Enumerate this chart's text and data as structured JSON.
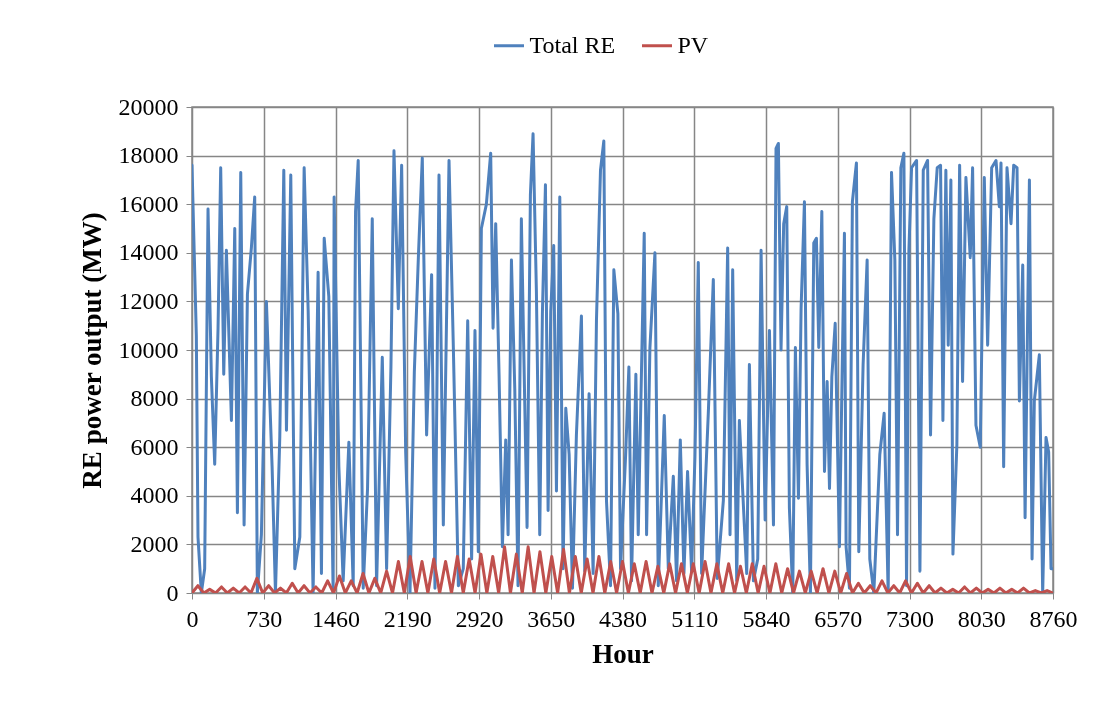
{
  "chart_data": {
    "type": "line",
    "xlabel": "Hour",
    "ylabel": "RE power output (MW)",
    "xlim": [
      0,
      8760
    ],
    "xticks": [
      0,
      730,
      1460,
      2190,
      2920,
      3650,
      4380,
      5110,
      5840,
      6570,
      7300,
      8030,
      8760
    ],
    "ylim": [
      0,
      20000
    ],
    "yticks": [
      0,
      2000,
      4000,
      6000,
      8000,
      10000,
      12000,
      14000,
      16000,
      18000,
      20000
    ],
    "grid": true,
    "legend": "top",
    "series": [
      {
        "name": "Total RE",
        "color": "#4f81bd",
        "x": [
          0,
          44,
          61,
          95,
          129,
          163,
          197,
          231,
          265,
          292,
          323,
          350,
          401,
          435,
          462,
          496,
          530,
          564,
          604,
          638,
          665,
          706,
          757,
          815,
          849,
          893,
          934,
          961,
          1005,
          1046,
          1097,
          1141,
          1182,
          1232,
          1283,
          1317,
          1345,
          1392,
          1436,
          1446,
          1494,
          1538,
          1596,
          1640,
          1664,
          1691,
          1742,
          1786,
          1834,
          1878,
          1936,
          1980,
          2024,
          2055,
          2099,
          2133,
          2174,
          2218,
          2262,
          2303,
          2343,
          2387,
          2438,
          2472,
          2513,
          2557,
          2615,
          2659,
          2710,
          2760,
          2805,
          2845,
          2879,
          2913,
          2944,
          2995,
          3039,
          3063,
          3090,
          3124,
          3158,
          3192,
          3216,
          3250,
          3284,
          3317,
          3351,
          3385,
          3409,
          3443,
          3470,
          3504,
          3538,
          3565,
          3596,
          3623,
          3650,
          3680,
          3708,
          3742,
          3775,
          3803,
          3837,
          3871,
          3911,
          3962,
          3996,
          4040,
          4081,
          4115,
          4156,
          4190,
          4217,
          4258,
          4292,
          4333,
          4360,
          4411,
          4445,
          4472,
          4516,
          4540,
          4601,
          4625,
          4659,
          4710,
          4744,
          4805,
          4846,
          4897,
          4930,
          4968,
          5005,
          5042,
          5083,
          5117,
          5151,
          5185,
          5253,
          5304,
          5344,
          5406,
          5450,
          5474,
          5501,
          5542,
          5569,
          5610,
          5644,
          5671,
          5712,
          5756,
          5790,
          5831,
          5875,
          5916,
          5942,
          5966,
          5993,
          6020,
          6051,
          6078,
          6112,
          6139,
          6170,
          6197,
          6231,
          6258,
          6292,
          6326,
          6353,
          6377,
          6408,
          6435,
          6462,
          6486,
          6510,
          6544,
          6587,
          6614,
          6638,
          6655,
          6689,
          6719,
          6760,
          6784,
          6828,
          6869,
          6896,
          6937,
          6998,
          7042,
          7083,
          7117,
          7151,
          7178,
          7212,
          7243,
          7270,
          7294,
          7321,
          7372,
          7406,
          7440,
          7484,
          7514,
          7548,
          7582,
          7616,
          7640,
          7670,
          7694,
          7721,
          7742,
          7782,
          7810,
          7840,
          7874,
          7918,
          7942,
          7976,
          8020,
          8061,
          8095,
          8136,
          8180,
          8214,
          8231,
          8258,
          8292,
          8333,
          8360,
          8394,
          8418,
          8452,
          8476,
          8520,
          8547,
          8570,
          8621,
          8655,
          8689,
          8716,
          8740,
          8760
        ],
        "values": [
          17600,
          10600,
          2300,
          0,
          1000,
          15800,
          8900,
          5300,
          10900,
          17500,
          9000,
          14100,
          7100,
          15000,
          3300,
          17300,
          2800,
          12300,
          14200,
          16300,
          0,
          2400,
          12000,
          5200,
          0,
          6400,
          17400,
          6700,
          17200,
          1000,
          2300,
          17500,
          11600,
          0,
          13200,
          800,
          14600,
          12200,
          0,
          16300,
          5200,
          500,
          6200,
          300,
          15700,
          17800,
          200,
          4300,
          15400,
          300,
          9700,
          1000,
          9300,
          18200,
          11700,
          17600,
          5800,
          0,
          9100,
          13800,
          17900,
          6500,
          13100,
          200,
          17200,
          2800,
          17800,
          10100,
          300,
          1000,
          11200,
          1400,
          10800,
          1700,
          15000,
          16000,
          18100,
          10900,
          15200,
          9000,
          1900,
          6300,
          2400,
          13700,
          8400,
          300,
          15400,
          7900,
          2700,
          16400,
          18900,
          12400,
          2400,
          11500,
          16800,
          3400,
          11600,
          14300,
          4200,
          16300,
          1000,
          7600,
          5700,
          200,
          6500,
          11400,
          900,
          8200,
          800,
          11200,
          17400,
          18600,
          3800,
          300,
          13300,
          11500,
          1000,
          5600,
          9300,
          500,
          9000,
          2400,
          14800,
          2400,
          10100,
          14000,
          300,
          7300,
          1000,
          4800,
          500,
          6300,
          800,
          5000,
          900,
          5600,
          13600,
          800,
          7400,
          12900,
          600,
          3800,
          14200,
          2400,
          13300,
          500,
          7100,
          3600,
          800,
          9400,
          500,
          1400,
          14100,
          3000,
          10800,
          2800,
          18300,
          18500,
          10000,
          15200,
          15900,
          3500,
          0,
          10100,
          3900,
          11700,
          16100,
          5300,
          0,
          14400,
          14600,
          10100,
          15700,
          5000,
          8700,
          4300,
          8900,
          11100,
          1900,
          8900,
          14800,
          1900,
          200,
          16100,
          17700,
          1700,
          9400,
          13700,
          1400,
          0,
          5700,
          7400,
          0,
          17300,
          13700,
          2400,
          17500,
          18100,
          300,
          14100,
          17500,
          17800,
          900,
          17400,
          17800,
          6500,
          15400,
          17500,
          17600,
          7100,
          17400,
          10200,
          17000,
          1600,
          6100,
          17600,
          8700,
          17100,
          13800,
          17500,
          6900,
          6000,
          17100,
          10200,
          17500,
          17800,
          15900,
          17700,
          5200,
          17500,
          15200,
          17600,
          17500,
          7900,
          13500,
          3100,
          17000,
          1400,
          7900,
          9800,
          0,
          6400,
          5800,
          1000,
          1000
        ]
      },
      {
        "name": "PV",
        "color": "#c0504d",
        "x": [
          0,
          60,
          120,
          180,
          240,
          300,
          360,
          420,
          480,
          540,
          600,
          660,
          720,
          780,
          840,
          900,
          960,
          1020,
          1080,
          1140,
          1200,
          1260,
          1320,
          1380,
          1440,
          1500,
          1560,
          1620,
          1680,
          1740,
          1800,
          1860,
          1920,
          1980,
          2040,
          2100,
          2160,
          2220,
          2280,
          2340,
          2400,
          2460,
          2520,
          2580,
          2640,
          2700,
          2760,
          2820,
          2880,
          2940,
          3000,
          3060,
          3120,
          3180,
          3240,
          3300,
          3360,
          3420,
          3480,
          3540,
          3600,
          3660,
          3720,
          3780,
          3840,
          3900,
          3960,
          4020,
          4080,
          4140,
          4200,
          4260,
          4320,
          4380,
          4440,
          4500,
          4560,
          4620,
          4680,
          4740,
          4800,
          4860,
          4920,
          4980,
          5040,
          5100,
          5160,
          5220,
          5280,
          5340,
          5400,
          5460,
          5520,
          5580,
          5640,
          5700,
          5760,
          5820,
          5880,
          5940,
          6000,
          6060,
          6120,
          6180,
          6240,
          6300,
          6360,
          6420,
          6480,
          6540,
          6600,
          6660,
          6720,
          6780,
          6840,
          6900,
          6960,
          7020,
          7080,
          7140,
          7200,
          7260,
          7320,
          7380,
          7440,
          7500,
          7560,
          7620,
          7680,
          7740,
          7800,
          7860,
          7920,
          7980,
          8040,
          8100,
          8160,
          8220,
          8280,
          8340,
          8400,
          8460,
          8520,
          8580,
          8640,
          8700,
          8760
        ],
        "values": [
          0,
          300,
          0,
          150,
          0,
          250,
          0,
          200,
          0,
          250,
          0,
          600,
          0,
          300,
          0,
          200,
          0,
          400,
          0,
          300,
          0,
          250,
          0,
          500,
          0,
          700,
          0,
          500,
          0,
          800,
          0,
          600,
          0,
          900,
          0,
          1300,
          0,
          1500,
          0,
          1300,
          0,
          1400,
          0,
          1300,
          0,
          1500,
          0,
          1400,
          0,
          1600,
          0,
          1500,
          0,
          1900,
          0,
          1600,
          0,
          1900,
          0,
          1700,
          0,
          1500,
          0,
          1800,
          0,
          1500,
          0,
          1400,
          0,
          1500,
          0,
          1300,
          0,
          1300,
          0,
          1200,
          0,
          1300,
          0,
          1100,
          0,
          1200,
          0,
          1200,
          0,
          1200,
          0,
          1300,
          0,
          1200,
          0,
          1200,
          0,
          1100,
          0,
          1200,
          0,
          1100,
          0,
          1200,
          0,
          1000,
          0,
          900,
          0,
          900,
          0,
          1000,
          0,
          900,
          0,
          800,
          0,
          400,
          0,
          300,
          0,
          500,
          0,
          300,
          0,
          500,
          0,
          400,
          0,
          300,
          0,
          200,
          0,
          150,
          0,
          250,
          0,
          200,
          0,
          150,
          0,
          200,
          0,
          150,
          0,
          200,
          0,
          100,
          0,
          100,
          0
        ]
      }
    ]
  }
}
